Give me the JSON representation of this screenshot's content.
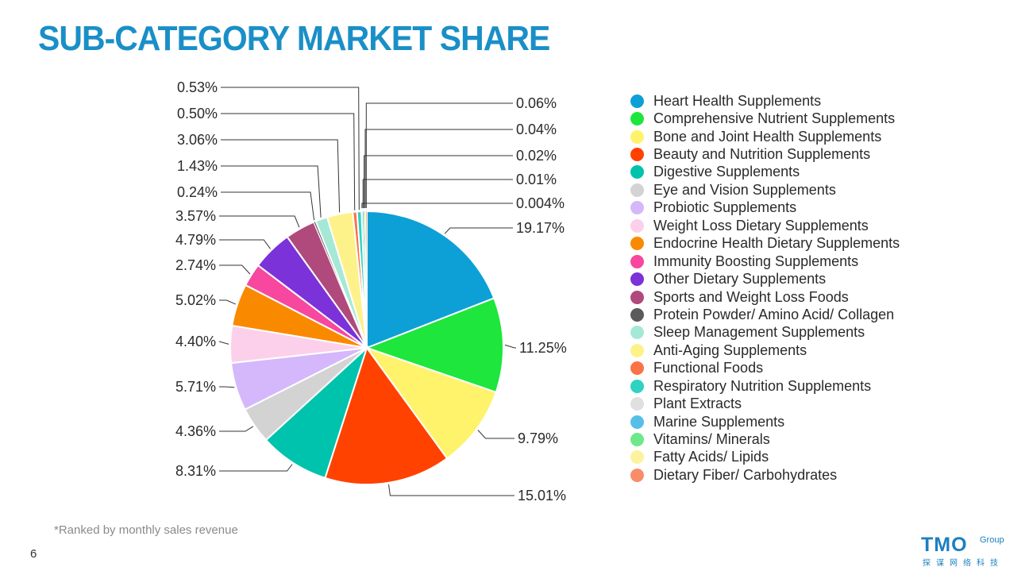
{
  "title": "SUB-CATEGORY MARKET SHARE",
  "footnote": "*Ranked by monthly sales revenue",
  "page_number": "6",
  "logo": {
    "main": "TMO",
    "sub": "Group",
    "cn": "探谋网络科技"
  },
  "chart_data": {
    "type": "pie",
    "title": "",
    "start_angle_deg": 0,
    "direction": "clockwise",
    "slices": [
      {
        "name": "Heart Health Supplements",
        "value": 19.17,
        "label": "19.17%",
        "color": "#0ca0d6"
      },
      {
        "name": "Comprehensive Nutrient Supplements",
        "value": 11.25,
        "label": "11.25%",
        "color": "#1ee63c"
      },
      {
        "name": "Bone and Joint Health Supplements",
        "value": 9.79,
        "label": "9.79%",
        "color": "#fef36b"
      },
      {
        "name": "Beauty and Nutrition Supplements",
        "value": 15.01,
        "label": "15.01%",
        "color": "#ff4200"
      },
      {
        "name": "Digestive Supplements",
        "value": 8.31,
        "label": "8.31%",
        "color": "#00c3ad"
      },
      {
        "name": "Eye and Vision Supplements",
        "value": 4.36,
        "label": "4.36%",
        "color": "#d3d3d3"
      },
      {
        "name": "Probiotic Supplements",
        "value": 5.71,
        "label": "5.71%",
        "color": "#d4b8fb"
      },
      {
        "name": "Weight Loss Dietary Supplements",
        "value": 4.4,
        "label": "4.40%",
        "color": "#fcd0ea"
      },
      {
        "name": "Endocrine Health Dietary Supplements",
        "value": 5.02,
        "label": "5.02%",
        "color": "#f98a00"
      },
      {
        "name": "Immunity Boosting Supplements",
        "value": 2.74,
        "label": "2.74%",
        "color": "#f7479e"
      },
      {
        "name": "Other Dietary Supplements",
        "value": 4.79,
        "label": "4.79%",
        "color": "#7b32d9"
      },
      {
        "name": "Sports and Weight Loss Foods",
        "value": 3.57,
        "label": "3.57%",
        "color": "#b0497c"
      },
      {
        "name": "Protein Powder/ Amino Acid/ Collagen",
        "value": 0.24,
        "label": "0.24%",
        "color": "#5b5b5b"
      },
      {
        "name": "Sleep Management Supplements",
        "value": 1.43,
        "label": "1.43%",
        "color": "#a6e8d6"
      },
      {
        "name": "Anti-Aging Supplements",
        "value": 3.06,
        "label": "3.06%",
        "color": "#fdf28a"
      },
      {
        "name": "Functional Foods",
        "value": 0.5,
        "label": "0.50%",
        "color": "#fb7148"
      },
      {
        "name": "Respiratory Nutrition Supplements",
        "value": 0.53,
        "label": "0.53%",
        "color": "#2ed3c1"
      },
      {
        "name": "Plant Extracts",
        "value": 0.004,
        "label": "0.004%",
        "color": "#e0e0e0"
      },
      {
        "name": "Marine Supplements",
        "value": 0.01,
        "label": "0.01%",
        "color": "#57bfe6"
      },
      {
        "name": "Vitamins/ Minerals",
        "value": 0.02,
        "label": "0.02%",
        "color": "#6ee888"
      },
      {
        "name": "Fatty Acids/ Lipids",
        "value": 0.04,
        "label": "0.04%",
        "color": "#fdf29e"
      },
      {
        "name": "Dietary Fiber/ Carbohydrates",
        "value": 0.06,
        "label": "0.06%",
        "color": "#f88d6a"
      }
    ]
  }
}
